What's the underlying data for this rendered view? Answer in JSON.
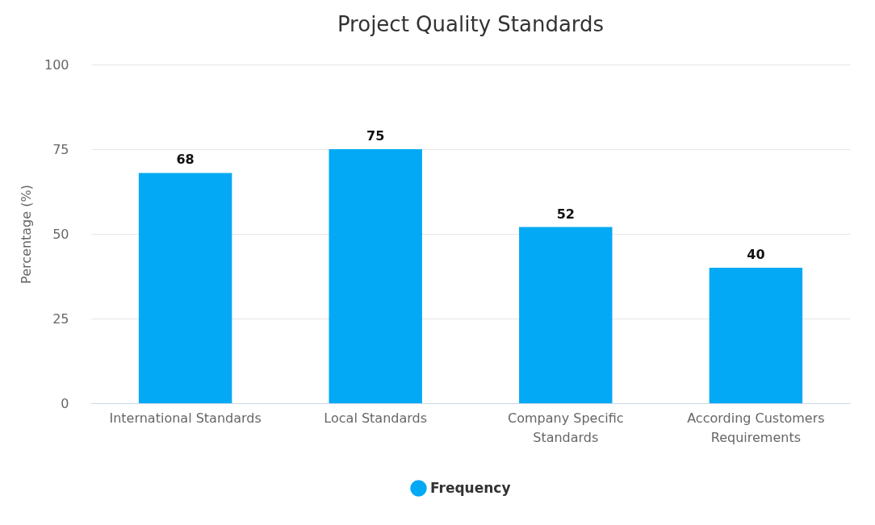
{
  "chart_data": {
    "type": "bar",
    "title": "Project Quality Standards",
    "ylabel": "Percentage (%)",
    "categories": [
      "International Standards",
      "Local Standards",
      "Company Specific Standards",
      "According Customers Requirements"
    ],
    "series": [
      {
        "name": "Frequency",
        "color": "#03a9f4",
        "values": [
          68,
          75,
          52,
          40
        ]
      }
    ],
    "ylim": [
      0,
      100
    ],
    "yticks": [
      0,
      25,
      50,
      75,
      100
    ],
    "grid": "y",
    "legend": "bottom",
    "data_labels": true
  }
}
